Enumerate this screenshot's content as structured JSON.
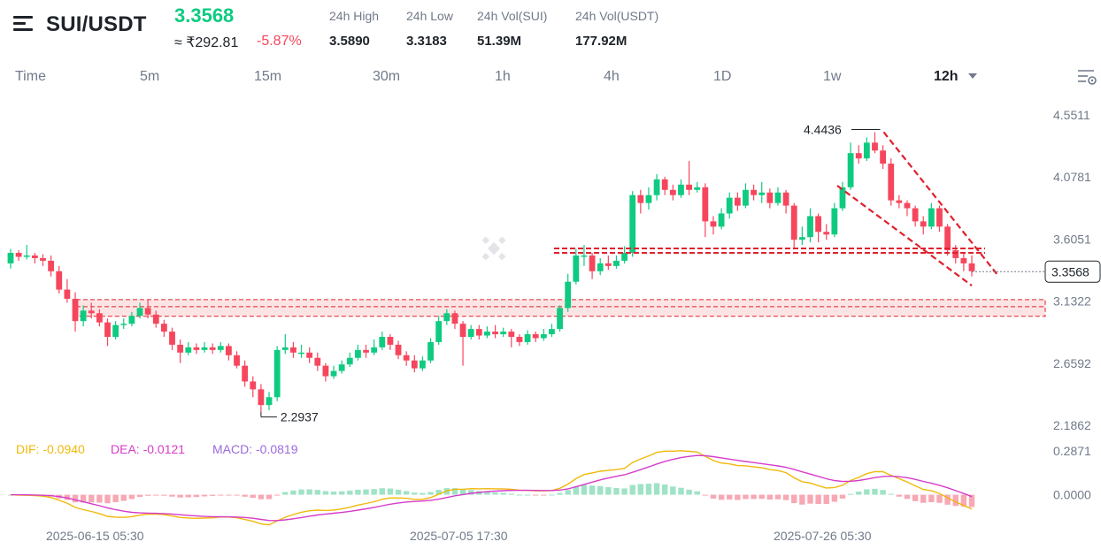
{
  "header": {
    "pair": "SUI/USDT",
    "price": "3.3568",
    "inr_price": "≈ ₹292.81",
    "change": "-5.87%",
    "stats": [
      {
        "label": "24h High",
        "value": "3.5890"
      },
      {
        "label": "24h Low",
        "value": "3.3183"
      },
      {
        "label": "24h Vol(SUI)",
        "value": "51.39M"
      },
      {
        "label": "24h Vol(USDT)",
        "value": "177.92M"
      }
    ]
  },
  "tabs": [
    "Time",
    "5m",
    "15m",
    "30m",
    "1h",
    "4h",
    "1D",
    "1w",
    "12h"
  ],
  "active_tab": "12h",
  "colors": {
    "up": "#0ecb81",
    "down": "#f6465d",
    "annotation": "#e0202e",
    "dif": "#f0b90b",
    "dea": "#d63cc9",
    "macd": "#9c6ade"
  },
  "chart_data": {
    "type": "candlestick",
    "y_ticks": [
      "4.5511",
      "4.0781",
      "3.6051",
      "3.1322",
      "2.6592",
      "2.1862"
    ],
    "ylim": [
      2.1862,
      4.5511
    ],
    "x_labels": [
      "2025-06-15 05:30",
      "2025-07-05 17:30",
      "2025-07-26 05:30"
    ],
    "last_price_label": "3.3568",
    "last_price": 3.3568,
    "high_label": "4.4436",
    "low_label": "2.2937",
    "annotations": {
      "support_zone": [
        3.03,
        3.13
      ],
      "resistance_line": 3.52,
      "channel_upper": [
        [
          4.44,
          3.36
        ]
      ],
      "note": ""
    },
    "candles": [
      [
        3.42,
        3.5,
        3.53,
        3.38
      ],
      [
        3.5,
        3.47,
        3.52,
        3.44
      ],
      [
        3.47,
        3.48,
        3.56,
        3.45
      ],
      [
        3.48,
        3.46,
        3.5,
        3.42
      ],
      [
        3.46,
        3.44,
        3.49,
        3.4
      ],
      [
        3.44,
        3.36,
        3.48,
        3.32
      ],
      [
        3.36,
        3.22,
        3.4,
        3.19
      ],
      [
        3.22,
        3.15,
        3.3,
        3.12
      ],
      [
        3.15,
        2.98,
        3.2,
        2.9
      ],
      [
        2.98,
        3.06,
        3.1,
        2.94
      ],
      [
        3.06,
        3.04,
        3.12,
        3.0
      ],
      [
        3.04,
        2.97,
        3.07,
        2.94
      ],
      [
        2.97,
        2.86,
        3.0,
        2.79
      ],
      [
        2.86,
        2.95,
        2.98,
        2.84
      ],
      [
        2.95,
        2.96,
        3.0,
        2.92
      ],
      [
        2.96,
        3.02,
        3.05,
        2.94
      ],
      [
        3.02,
        3.08,
        3.12,
        3.0
      ],
      [
        3.08,
        3.03,
        3.14,
        3.0
      ],
      [
        3.03,
        2.96,
        3.06,
        2.93
      ],
      [
        2.96,
        2.9,
        2.99,
        2.86
      ],
      [
        2.9,
        2.8,
        2.93,
        2.76
      ],
      [
        2.8,
        2.74,
        2.84,
        2.66
      ],
      [
        2.74,
        2.78,
        2.82,
        2.72
      ],
      [
        2.78,
        2.76,
        2.81,
        2.73
      ],
      [
        2.76,
        2.78,
        2.82,
        2.74
      ],
      [
        2.78,
        2.76,
        2.81,
        2.73
      ],
      [
        2.76,
        2.79,
        2.82,
        2.74
      ],
      [
        2.79,
        2.72,
        2.81,
        2.68
      ],
      [
        2.72,
        2.64,
        2.75,
        2.62
      ],
      [
        2.64,
        2.52,
        2.68,
        2.48
      ],
      [
        2.52,
        2.46,
        2.56,
        2.4
      ],
      [
        2.46,
        2.34,
        2.5,
        2.29
      ],
      [
        2.34,
        2.4,
        2.44,
        2.3
      ],
      [
        2.4,
        2.76,
        2.79,
        2.37
      ],
      [
        2.76,
        2.78,
        2.88,
        2.73
      ],
      [
        2.78,
        2.74,
        2.82,
        2.7
      ],
      [
        2.74,
        2.74,
        2.8,
        2.7
      ],
      [
        2.74,
        2.7,
        2.78,
        2.66
      ],
      [
        2.7,
        2.64,
        2.74,
        2.6
      ],
      [
        2.64,
        2.56,
        2.66,
        2.52
      ],
      [
        2.56,
        2.6,
        2.64,
        2.54
      ],
      [
        2.6,
        2.65,
        2.68,
        2.58
      ],
      [
        2.65,
        2.7,
        2.74,
        2.63
      ],
      [
        2.7,
        2.76,
        2.8,
        2.68
      ],
      [
        2.76,
        2.74,
        2.8,
        2.7
      ],
      [
        2.74,
        2.78,
        2.84,
        2.72
      ],
      [
        2.78,
        2.86,
        2.9,
        2.76
      ],
      [
        2.86,
        2.8,
        2.88,
        2.76
      ],
      [
        2.8,
        2.72,
        2.83,
        2.69
      ],
      [
        2.72,
        2.68,
        2.75,
        2.64
      ],
      [
        2.68,
        2.62,
        2.72,
        2.59
      ],
      [
        2.62,
        2.68,
        2.71,
        2.6
      ],
      [
        2.68,
        2.82,
        2.85,
        2.66
      ],
      [
        2.82,
        2.98,
        3.02,
        2.8
      ],
      [
        2.98,
        3.04,
        3.07,
        2.95
      ],
      [
        3.04,
        2.96,
        3.06,
        2.92
      ],
      [
        2.96,
        2.86,
        2.98,
        2.64
      ],
      [
        2.86,
        2.92,
        2.95,
        2.84
      ],
      [
        2.92,
        2.87,
        2.95,
        2.84
      ],
      [
        2.87,
        2.9,
        2.94,
        2.85
      ],
      [
        2.9,
        2.88,
        2.95,
        2.85
      ],
      [
        2.88,
        2.9,
        2.93,
        2.86
      ],
      [
        2.9,
        2.86,
        2.92,
        2.78
      ],
      [
        2.86,
        2.82,
        2.88,
        2.79
      ],
      [
        2.82,
        2.88,
        2.91,
        2.8
      ],
      [
        2.88,
        2.85,
        2.9,
        2.82
      ],
      [
        2.85,
        2.88,
        2.92,
        2.83
      ],
      [
        2.88,
        2.92,
        2.96,
        2.86
      ],
      [
        2.92,
        3.08,
        3.1,
        2.9
      ],
      [
        3.08,
        3.28,
        3.34,
        3.05
      ],
      [
        3.28,
        3.48,
        3.53,
        3.26
      ],
      [
        3.48,
        3.48,
        3.56,
        3.4
      ],
      [
        3.48,
        3.36,
        3.5,
        3.3
      ],
      [
        3.36,
        3.42,
        3.46,
        3.33
      ],
      [
        3.42,
        3.4,
        3.48,
        3.37
      ],
      [
        3.4,
        3.44,
        3.48,
        3.38
      ],
      [
        3.44,
        3.5,
        3.55,
        3.42
      ],
      [
        3.5,
        3.94,
        3.97,
        3.47
      ],
      [
        3.94,
        3.88,
        3.98,
        3.8
      ],
      [
        3.88,
        3.94,
        4.0,
        3.83
      ],
      [
        3.94,
        4.06,
        4.1,
        3.9
      ],
      [
        4.06,
        3.98,
        4.08,
        3.94
      ],
      [
        3.98,
        3.94,
        4.02,
        3.9
      ],
      [
        3.94,
        4.02,
        4.06,
        3.92
      ],
      [
        4.02,
        3.98,
        4.2,
        3.94
      ],
      [
        3.98,
        4.0,
        4.04,
        3.96
      ],
      [
        4.0,
        3.74,
        4.03,
        3.62
      ],
      [
        3.74,
        3.7,
        3.78,
        3.64
      ],
      [
        3.7,
        3.8,
        3.84,
        3.68
      ],
      [
        3.8,
        3.92,
        3.96,
        3.76
      ],
      [
        3.92,
        3.86,
        3.96,
        3.82
      ],
      [
        3.86,
        3.98,
        4.03,
        3.84
      ],
      [
        3.98,
        3.94,
        4.02,
        3.9
      ],
      [
        3.94,
        3.96,
        4.04,
        3.88
      ],
      [
        3.96,
        3.88,
        3.99,
        3.84
      ],
      [
        3.88,
        3.96,
        4.0,
        3.86
      ],
      [
        3.96,
        3.86,
        3.98,
        3.8
      ],
      [
        3.86,
        3.6,
        3.88,
        3.54
      ],
      [
        3.6,
        3.62,
        3.7,
        3.56
      ],
      [
        3.62,
        3.78,
        3.84,
        3.58
      ],
      [
        3.78,
        3.66,
        3.8,
        3.58
      ],
      [
        3.66,
        3.64,
        3.72,
        3.6
      ],
      [
        3.64,
        3.84,
        3.88,
        3.62
      ],
      [
        3.84,
        4.0,
        4.04,
        3.82
      ],
      [
        4.0,
        4.26,
        4.34,
        3.98
      ],
      [
        4.26,
        4.22,
        4.32,
        4.18
      ],
      [
        4.22,
        4.34,
        4.38,
        4.2
      ],
      [
        4.34,
        4.28,
        4.42,
        4.26
      ],
      [
        4.28,
        4.18,
        4.32,
        4.14
      ],
      [
        4.18,
        3.9,
        4.22,
        3.86
      ],
      [
        3.9,
        3.88,
        3.94,
        3.84
      ],
      [
        3.88,
        3.84,
        3.9,
        3.78
      ],
      [
        3.84,
        3.74,
        3.86,
        3.7
      ],
      [
        3.74,
        3.7,
        3.78,
        3.64
      ],
      [
        3.7,
        3.84,
        3.88,
        3.68
      ],
      [
        3.84,
        3.7,
        3.86,
        3.66
      ],
      [
        3.7,
        3.52,
        3.72,
        3.48
      ],
      [
        3.52,
        3.46,
        3.56,
        3.42
      ],
      [
        3.46,
        3.42,
        3.5,
        3.36
      ],
      [
        3.42,
        3.36,
        3.48,
        3.32
      ]
    ],
    "macd": {
      "dif_label": "DIF: -0.0940",
      "dea_label": "DEA: -0.0121",
      "macd_label": "MACD: -0.0819",
      "y_ticks": [
        "0.2871",
        "0.0000"
      ],
      "ylim": [
        -0.13,
        0.2871
      ]
    }
  }
}
